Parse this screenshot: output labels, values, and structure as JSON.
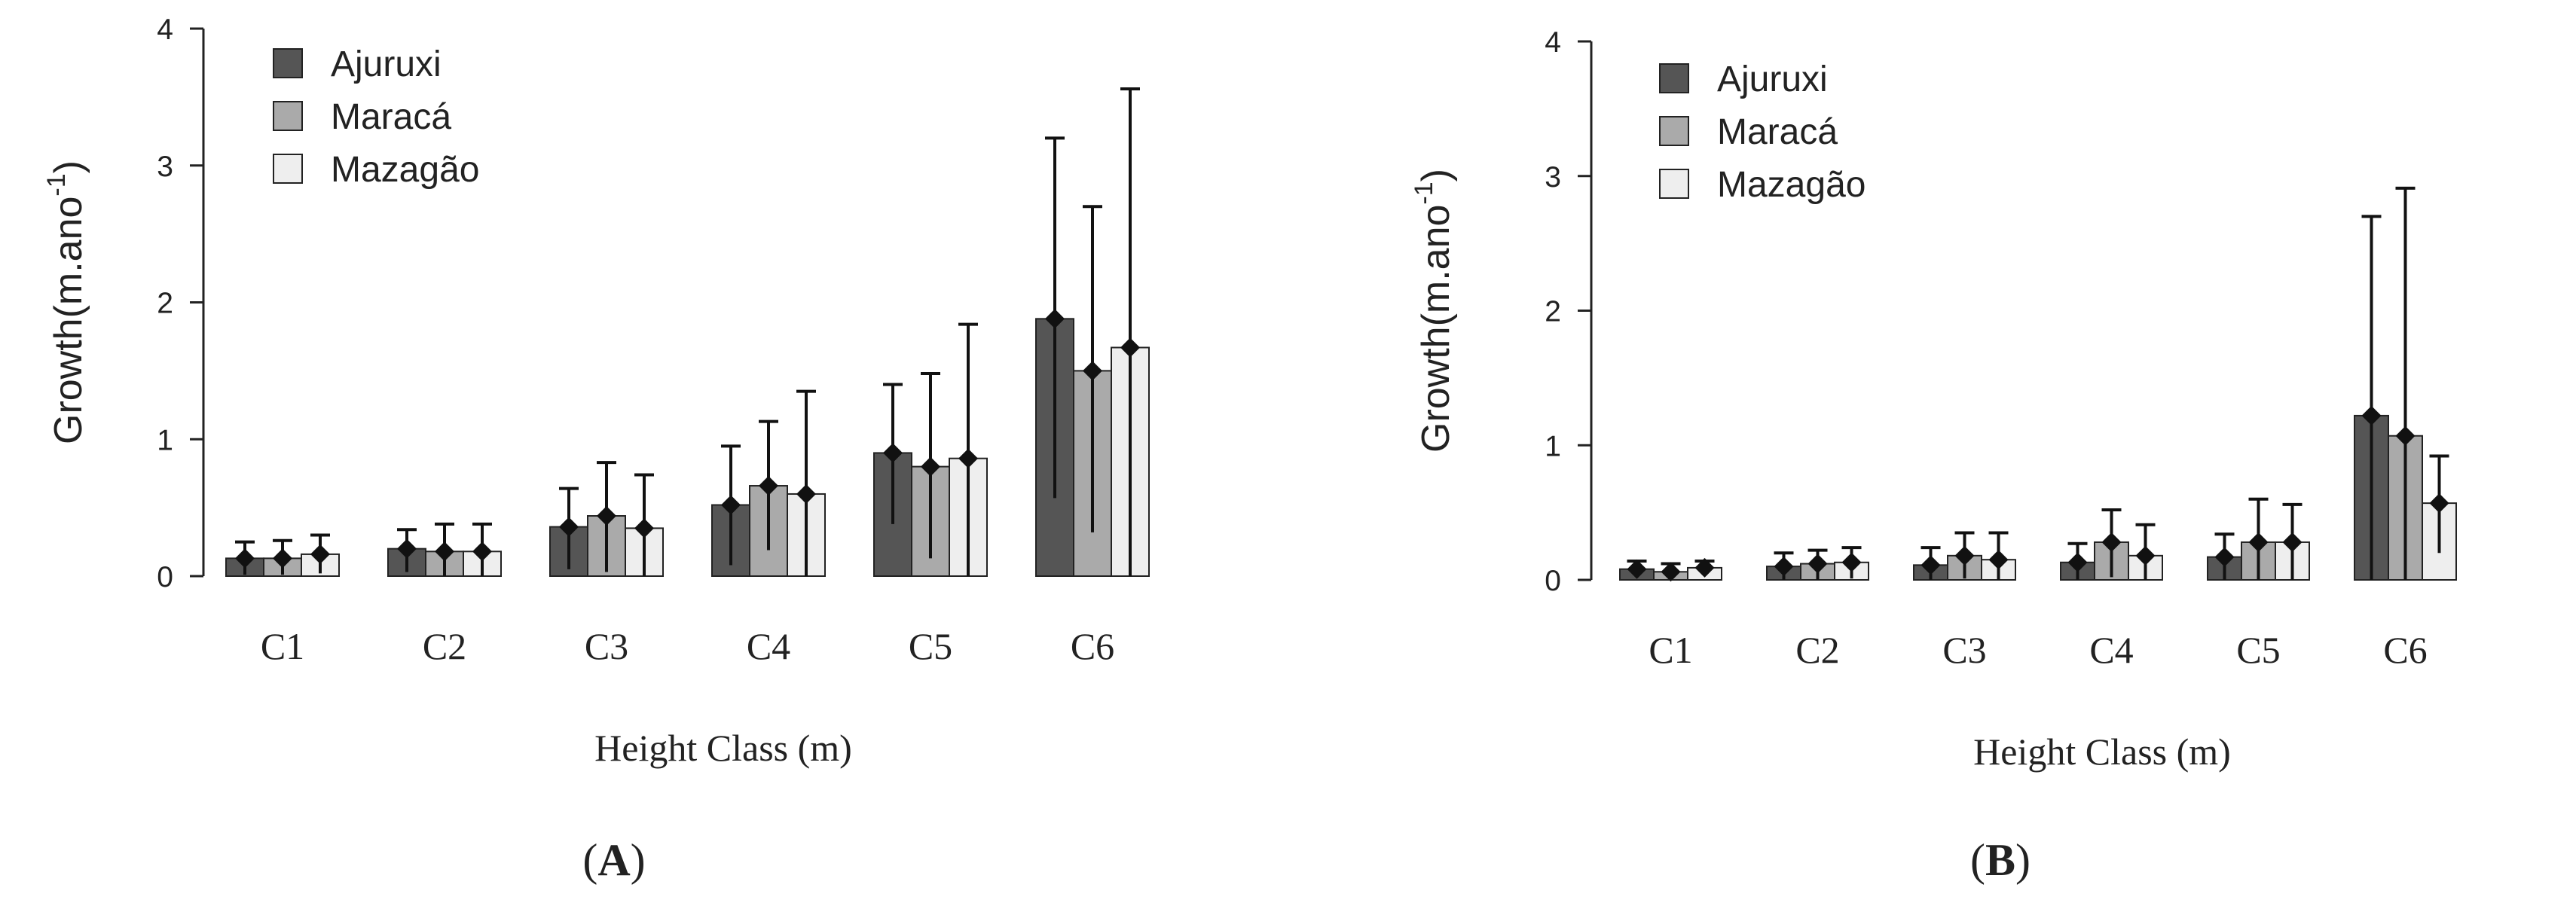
{
  "colors": {
    "Ajuruxi": "#555555",
    "Maracá": "#aaaaaa",
    "Mazagão": "#eeeeee"
  },
  "chart_data": [
    {
      "type": "bar",
      "panel_label": "A",
      "categories": [
        "C1",
        "C2",
        "C3",
        "C4",
        "C5",
        "C6"
      ],
      "xlabel": "Height Class (m)",
      "ylabel_base": "Growth(m.ano",
      "ylabel_exp": "-1",
      "ylabel_close": ")",
      "ylim": [
        0,
        4
      ],
      "yticks": [
        "0",
        "1",
        "2",
        "3",
        "4"
      ],
      "legend": [
        "Ajuruxi",
        "Maracá",
        "Mazagão"
      ],
      "legend_position": "top-left",
      "series": [
        {
          "name": "Ajuruxi",
          "values": [
            0.13,
            0.2,
            0.36,
            0.52,
            0.9,
            1.88
          ],
          "error_upper": [
            0.25,
            0.34,
            0.64,
            0.95,
            1.4,
            3.2
          ],
          "error_lower": [
            0.01,
            0.03,
            0.05,
            0.08,
            0.38,
            0.57
          ]
        },
        {
          "name": "Maracá",
          "values": [
            0.13,
            0.18,
            0.44,
            0.66,
            0.8,
            1.5
          ],
          "error_upper": [
            0.26,
            0.38,
            0.83,
            1.13,
            1.48,
            2.7
          ],
          "error_lower": [
            0.01,
            0.0,
            0.03,
            0.19,
            0.13,
            0.32
          ]
        },
        {
          "name": "Mazagão",
          "values": [
            0.16,
            0.18,
            0.35,
            0.6,
            0.86,
            1.67
          ],
          "error_upper": [
            0.3,
            0.38,
            0.74,
            1.35,
            1.84,
            3.56
          ],
          "error_lower": [
            0.02,
            0.0,
            0.0,
            0.0,
            0.0,
            0.0
          ]
        }
      ]
    },
    {
      "type": "bar",
      "panel_label": "B",
      "categories": [
        "C1",
        "C2",
        "C3",
        "C4",
        "C5",
        "C6"
      ],
      "xlabel": "Height Class (m)",
      "ylabel_base": "Growth(m.ano",
      "ylabel_exp": "-1",
      "ylabel_close": ")",
      "ylim": [
        0,
        4
      ],
      "yticks": [
        "0",
        "1",
        "2",
        "3",
        "4"
      ],
      "legend": [
        "Ajuruxi",
        "Maracá",
        "Mazagão"
      ],
      "legend_position": "top-left",
      "series": [
        {
          "name": "Ajuruxi",
          "values": [
            0.08,
            0.1,
            0.11,
            0.13,
            0.17,
            1.22
          ],
          "error_upper": [
            0.14,
            0.2,
            0.24,
            0.27,
            0.34,
            2.7
          ],
          "error_lower": [
            0.02,
            0.0,
            0.0,
            0.0,
            0.0,
            0.0
          ]
        },
        {
          "name": "Maracá",
          "values": [
            0.06,
            0.12,
            0.18,
            0.28,
            0.28,
            1.07
          ],
          "error_upper": [
            0.12,
            0.22,
            0.35,
            0.52,
            0.6,
            2.91
          ],
          "error_lower": [
            0.01,
            0.0,
            0.01,
            0.02,
            0.0,
            0.0
          ]
        },
        {
          "name": "Mazagão",
          "values": [
            0.09,
            0.13,
            0.15,
            0.18,
            0.28,
            0.57
          ],
          "error_upper": [
            0.14,
            0.24,
            0.35,
            0.41,
            0.56,
            0.92
          ],
          "error_lower": [
            0.03,
            0.01,
            0.0,
            0.0,
            0.0,
            0.2
          ]
        }
      ]
    }
  ]
}
